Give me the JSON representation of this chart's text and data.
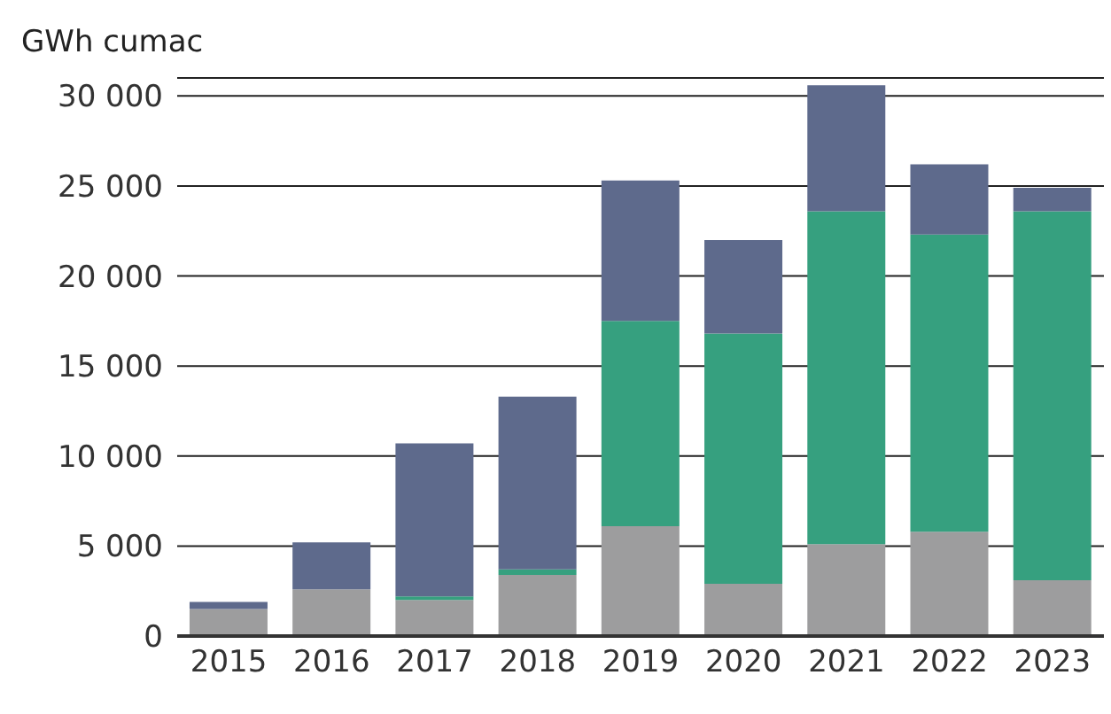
{
  "chart_data": {
    "type": "bar",
    "stacked": true,
    "ylabel": "GWh cumac",
    "categories": [
      "2015",
      "2016",
      "2017",
      "2018",
      "2019",
      "2020",
      "2021",
      "2022",
      "2023"
    ],
    "series": [
      {
        "color": "#9d9d9e",
        "values": [
          1500,
          2600,
          2000,
          3400,
          6100,
          2900,
          5100,
          5800,
          3100
        ]
      },
      {
        "color": "#36a07f",
        "values": [
          0,
          0,
          200,
          300,
          11400,
          13900,
          18500,
          16500,
          20500
        ]
      },
      {
        "color": "#5e6a8c",
        "values": [
          400,
          2600,
          8500,
          9600,
          7800,
          5200,
          7000,
          3900,
          1300
        ]
      }
    ],
    "ylim": [
      0,
      31000
    ],
    "yticks": [
      {
        "value": 0,
        "label": "0"
      },
      {
        "value": 5000,
        "label": "5 000"
      },
      {
        "value": 10000,
        "label": "10 000"
      },
      {
        "value": 15000,
        "label": "15 000"
      },
      {
        "value": 20000,
        "label": "20 000"
      },
      {
        "value": 25000,
        "label": "25 000"
      },
      {
        "value": 30000,
        "label": "30 000"
      }
    ],
    "grid": "y",
    "legend": false
  }
}
